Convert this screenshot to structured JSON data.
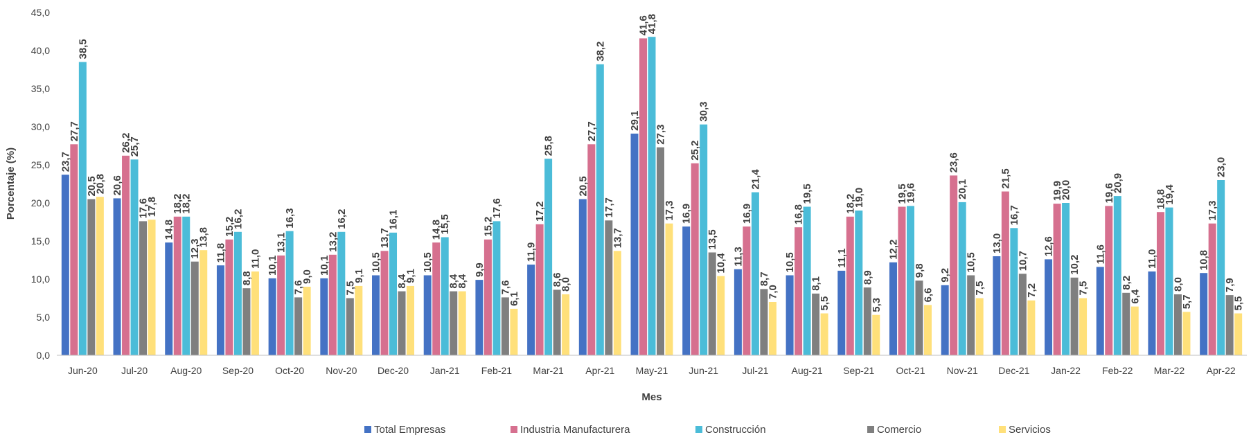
{
  "chart_data": {
    "type": "bar",
    "categories": [
      "Jun-20",
      "Jul-20",
      "Aug-20",
      "Sep-20",
      "Oct-20",
      "Nov-20",
      "Dec-20",
      "Jan-21",
      "Feb-21",
      "Mar-21",
      "Apr-21",
      "May-21",
      "Jun-21",
      "Jul-21",
      "Aug-21",
      "Sep-21",
      "Oct-21",
      "Nov-21",
      "Dec-21",
      "Jan-22",
      "Feb-22",
      "Mar-22",
      "Apr-22"
    ],
    "series": [
      {
        "name": "Total Empresas",
        "color": "#4472C4",
        "values": [
          23.7,
          20.6,
          14.8,
          11.8,
          10.1,
          10.1,
          10.5,
          10.5,
          9.9,
          11.9,
          20.5,
          29.1,
          16.9,
          11.3,
          10.5,
          11.1,
          12.2,
          9.2,
          13.0,
          12.6,
          11.6,
          11.0,
          10.8
        ]
      },
      {
        "name": "Industria Manufacturera",
        "color": "#D6708F",
        "values": [
          27.7,
          26.2,
          18.2,
          15.2,
          13.1,
          13.2,
          13.7,
          14.8,
          15.2,
          17.2,
          27.7,
          41.6,
          25.2,
          16.9,
          16.8,
          18.2,
          19.5,
          23.6,
          21.5,
          19.9,
          19.6,
          18.8,
          17.3
        ]
      },
      {
        "name": "Construcción",
        "color": "#4BBCD8",
        "values": [
          38.5,
          25.7,
          18.2,
          16.2,
          16.3,
          16.2,
          16.1,
          15.5,
          17.6,
          25.8,
          38.2,
          41.8,
          30.3,
          21.4,
          19.5,
          19.0,
          19.6,
          20.1,
          16.7,
          20.0,
          20.9,
          19.4,
          23.0
        ]
      },
      {
        "name": "Comercio",
        "color": "#7F7F7F",
        "values": [
          20.5,
          17.6,
          12.3,
          8.8,
          7.6,
          7.5,
          8.4,
          8.4,
          7.6,
          8.6,
          17.7,
          27.3,
          13.5,
          8.7,
          8.1,
          8.9,
          9.8,
          10.5,
          10.7,
          10.2,
          8.2,
          8.0,
          7.9
        ]
      },
      {
        "name": "Servicios",
        "color": "#FFE07A",
        "values": [
          20.8,
          17.8,
          13.8,
          11.0,
          9.0,
          9.1,
          9.1,
          8.4,
          6.1,
          8.0,
          13.7,
          17.3,
          10.4,
          7.0,
          5.5,
          5.3,
          6.6,
          7.5,
          7.2,
          7.5,
          6.4,
          5.7,
          5.5
        ]
      }
    ],
    "xlabel": "Mes",
    "ylabel": "Porcentaje (%)",
    "ylim": [
      0,
      45
    ],
    "yticks": [
      "0,0",
      "5,0",
      "10,0",
      "15,0",
      "20,0",
      "25,0",
      "30,0",
      "35,0",
      "40,0",
      "45,0"
    ],
    "grid": false,
    "legend": "bottom",
    "decimal_separator": ","
  }
}
